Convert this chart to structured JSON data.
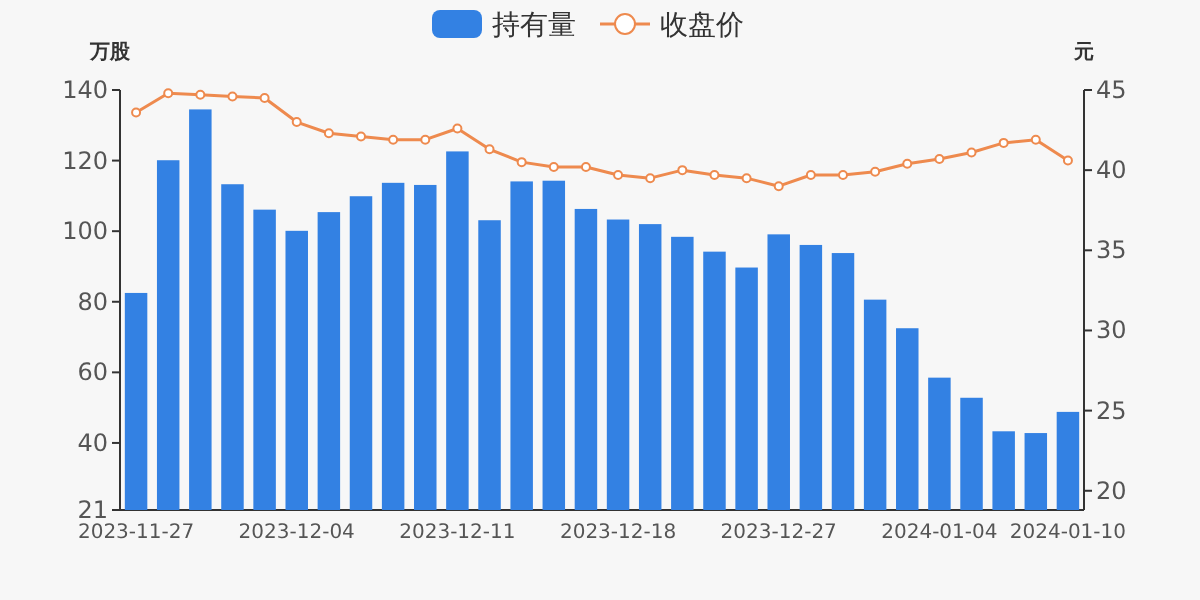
{
  "chart_data": {
    "type": "bar",
    "ylabel": "万股",
    "y2label": "元",
    "legend": "top",
    "categories": [
      "2023-11-27",
      null,
      null,
      null,
      null,
      "2023-12-04",
      null,
      null,
      null,
      null,
      "2023-12-11",
      null,
      null,
      null,
      null,
      "2023-12-18",
      null,
      null,
      null,
      null,
      "2023-12-27",
      null,
      null,
      null,
      null,
      "2024-01-04",
      null,
      null,
      null,
      "2024-01-10"
    ],
    "series": [
      {
        "name": "持有量",
        "color": "#3381e3",
        "values": [
          82.5,
          120.1,
          134.5,
          113.3,
          106.1,
          100.1,
          105.4,
          109.9,
          113.7,
          113.1,
          122.6,
          103.1,
          114.1,
          114.3,
          106.3,
          103.3,
          102.0,
          98.4,
          94.2,
          89.7,
          99.1,
          96.1,
          93.8,
          80.6,
          72.5,
          58.5,
          52.8,
          43.3,
          42.8,
          48.8
        ]
      },
      {
        "name": "收盘价",
        "type": "line",
        "axis": "y2",
        "marker": "circle",
        "color": "#ee8a4e",
        "values": [
          43.6,
          44.8,
          44.7,
          44.6,
          44.5,
          43.0,
          42.3,
          42.1,
          41.9,
          41.9,
          42.6,
          41.3,
          40.5,
          40.2,
          40.2,
          39.7,
          39.5,
          40.0,
          39.7,
          39.5,
          39.0,
          39.7,
          39.7,
          39.9,
          40.4,
          40.7,
          41.1,
          41.7,
          41.9,
          40.6
        ]
      }
    ],
    "ylim": [
      21,
      140
    ],
    "yticks": [
      21,
      40,
      60,
      80,
      100,
      120,
      140
    ],
    "y2lim": [
      18.8,
      45
    ],
    "y2ticks": [
      20,
      25,
      30,
      35,
      40,
      45
    ]
  }
}
